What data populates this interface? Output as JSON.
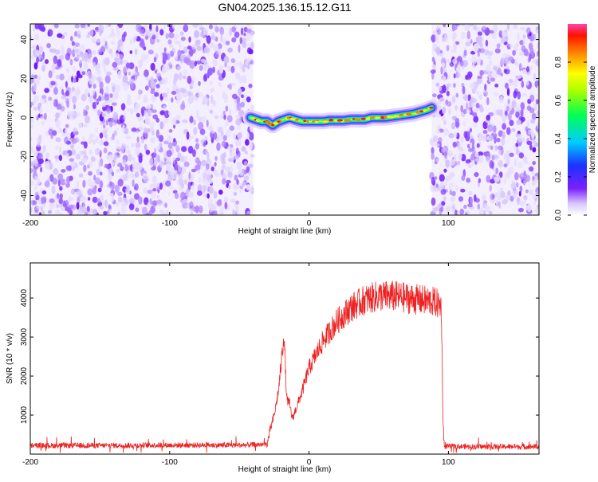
{
  "title": "GN04.2025.136.15.12.G11",
  "chart_data": [
    {
      "type": "heatmap",
      "xlabel": "Height of straight line (km)",
      "ylabel": "Frequency (Hz)",
      "xlim": [
        -200,
        165
      ],
      "ylim": [
        -50,
        48
      ],
      "xticks": [
        -200,
        -100,
        0,
        100
      ],
      "yticks": [
        -40,
        -20,
        0,
        20,
        40
      ],
      "grid": false,
      "noise_regions_x": [
        [
          -200,
          -40
        ],
        [
          88,
          165
        ]
      ],
      "signal_trace": {
        "x": [
          -42,
          -38,
          -34,
          -30,
          -26,
          -22,
          -18,
          -14,
          -10,
          -5,
          0,
          5,
          10,
          15,
          20,
          25,
          30,
          35,
          40,
          45,
          50,
          55,
          60,
          65,
          70,
          75,
          80,
          85,
          88
        ],
        "frequency": [
          0,
          -1,
          -2,
          -2,
          -4,
          -2,
          -1,
          0,
          -1,
          -2,
          -2,
          -2,
          -2,
          -1.5,
          -1.5,
          -1.5,
          -1,
          -1,
          -1,
          0,
          0,
          0,
          0.5,
          1,
          1.5,
          2,
          3,
          4,
          5
        ]
      },
      "colorbar": {
        "label": "Normalized spectral amplitude",
        "ticks": [
          0.0,
          0.2,
          0.4,
          0.6,
          0.8
        ],
        "range": [
          0,
          1
        ]
      }
    },
    {
      "type": "line",
      "xlabel": "Height of straight line (km)",
      "ylabel": "SNR (10 * v/v)",
      "xlim": [
        -200,
        165
      ],
      "ylim": [
        0,
        4900
      ],
      "xticks": [
        -200,
        -100,
        0,
        100
      ],
      "yticks": [
        1000,
        2000,
        3000,
        4000
      ],
      "grid": false,
      "series": [
        {
          "color": "#ee2222",
          "x": [
            -200,
            -150,
            -100,
            -50,
            -30,
            -28,
            -25,
            -22,
            -20,
            -18,
            -16,
            -14,
            -12,
            -10,
            -5,
            0,
            10,
            20,
            30,
            40,
            50,
            60,
            70,
            80,
            90,
            95,
            96,
            97,
            100,
            120,
            140,
            165
          ],
          "y": [
            220,
            220,
            230,
            230,
            250,
            600,
            1000,
            1600,
            2300,
            3100,
            1400,
            1300,
            900,
            1100,
            1600,
            2200,
            2900,
            3400,
            3750,
            3950,
            4050,
            4050,
            4000,
            3950,
            3900,
            3800,
            1000,
            200,
            200,
            190,
            190,
            190
          ]
        }
      ]
    }
  ]
}
